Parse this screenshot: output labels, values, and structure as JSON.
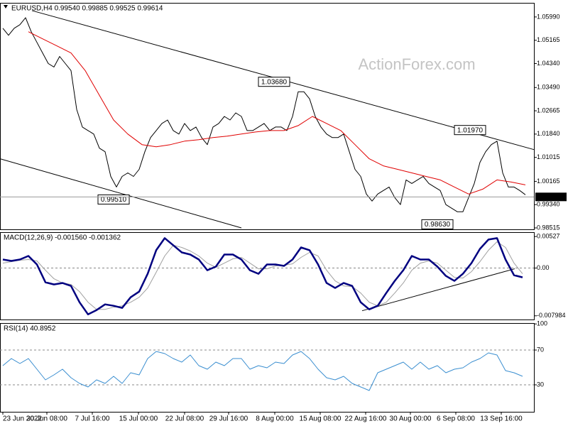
{
  "chart_data": [
    {
      "type": "line",
      "title": "EURUSD,H4  0.99540 0.99885 0.99525 0.99614",
      "watermark": "ActionForex.com",
      "xlim": [
        0,
        376
      ],
      "ylim": [
        0.98465,
        1.0649
      ],
      "yticks": [
        {
          "value": 1.0599,
          "label": "1.05990"
        },
        1.05165,
        {
          "value": 1.0434,
          "label": "1.04340"
        },
        {
          "value": 1.0349,
          "label": "1.03490"
        },
        1.02665,
        {
          "value": 1.0184,
          "label": "1.01840"
        },
        1.01015,
        1.00165,
        {
          "value": 0.9934,
          "label": "0.99340"
        },
        0.98515
      ],
      "series": [
        {
          "color": "#000000",
          "width": 1,
          "x": [
            2,
            6,
            10,
            14,
            18,
            22,
            26,
            30,
            34,
            38,
            42,
            46,
            50,
            54,
            58,
            62,
            66,
            70,
            74,
            78,
            82,
            86,
            90,
            94,
            98,
            102,
            106,
            110,
            114,
            118,
            122,
            126,
            130,
            134,
            138,
            142,
            146,
            150,
            154,
            158,
            162,
            166,
            170,
            174,
            178,
            182,
            186,
            190,
            194,
            198,
            202,
            206,
            210,
            214,
            218,
            222,
            226,
            230,
            234,
            238,
            242,
            246,
            250,
            254,
            258,
            262,
            266,
            270,
            274,
            278,
            282,
            286,
            290,
            294,
            298,
            302,
            306,
            310,
            314,
            318,
            322,
            326,
            330,
            334,
            338,
            342,
            346,
            350,
            354,
            358,
            362,
            366,
            370
          ],
          "values": [
            1.0559,
            1.0534,
            1.0559,
            1.05715,
            1.05965,
            1.05465,
            1.0509,
            1.04715,
            1.0434,
            1.04215,
            1.0459,
            1.0434,
            1.0409,
            1.02715,
            1.0209,
            1.01965,
            1.0184,
            1.0134,
            1.01215,
            1.0034,
            0.99965,
            1.0034,
            1.00465,
            1.0034,
            1.0059,
            1.01215,
            1.01715,
            1.01965,
            1.02215,
            1.0234,
            1.01965,
            1.0184,
            1.02215,
            1.01965,
            1.0209,
            1.01715,
            1.01465,
            1.0209,
            1.02215,
            1.02465,
            1.0234,
            1.0259,
            1.02465,
            1.01965,
            1.01965,
            1.0209,
            1.02215,
            1.01965,
            1.0209,
            1.0209,
            1.01965,
            1.02465,
            1.0334,
            1.0334,
            1.0309,
            1.02465,
            1.0209,
            1.0184,
            1.01715,
            1.01715,
            1.0184,
            1.01215,
            1.0059,
            1.0034,
            0.99715,
            0.99465,
            0.99715,
            0.9984,
            0.99965,
            0.9959,
            0.9934,
            1.00215,
            1.0009,
            1.00215,
            1.0034,
            1.0009,
            0.99965,
            0.9984,
            0.9934,
            0.99215,
            0.9909,
            0.9909,
            0.9959,
            1.0009,
            1.0084,
            1.01215,
            1.01465,
            1.0159,
            1.00465,
            0.99965,
            0.99965,
            0.9984,
            0.9969
          ]
        },
        {
          "color": "#e00000",
          "width": 1,
          "x": [
            20,
            30,
            40,
            50,
            60,
            70,
            80,
            90,
            100,
            110,
            120,
            130,
            140,
            150,
            160,
            170,
            180,
            190,
            200,
            210,
            220,
            230,
            240,
            250,
            260,
            270,
            280,
            290,
            300,
            310,
            320,
            330,
            340,
            350,
            360,
            370
          ],
          "values": [
            1.05465,
            1.05215,
            1.04965,
            1.04715,
            1.0409,
            1.03215,
            1.0234,
            1.0184,
            1.01465,
            1.0139,
            1.01465,
            1.0159,
            1.0164,
            1.01715,
            1.01765,
            1.0184,
            1.01915,
            1.01965,
            1.01965,
            1.0214,
            1.02465,
            1.02215,
            1.01965,
            1.01465,
            1.00965,
            1.00715,
            1.0059,
            1.00465,
            1.0034,
            1.00215,
            0.99965,
            0.99715,
            0.9989,
            1.00215,
            1.0014,
            1.0004
          ]
        }
      ],
      "trendlines": [
        {
          "x": [
            22.5,
            376
          ],
          "values": [
            1.06215,
            1.0129
          ]
        },
        {
          "x": [
            0,
            170
          ],
          "values": [
            1.00965,
            0.98515
          ]
        }
      ],
      "annotations": [
        {
          "label": "1.03680",
          "value": 1.0368,
          "x": 204
        },
        {
          "label": "0.99510",
          "value": 0.9951,
          "x": 91
        },
        {
          "label": "1.01970",
          "value": 1.0197,
          "x": 342
        },
        {
          "label": "0.98630",
          "value": 0.9863,
          "x": 319
        }
      ],
      "last_price": {
        "value": 0.99614,
        "label": "0.99614"
      }
    },
    {
      "type": "line",
      "title": "MACD(12,26,9) -0.001560 -0.001362",
      "xlim": [
        0,
        376
      ],
      "ylim": [
        -0.0086,
        0.006
      ],
      "yticks": [
        0.00527,
        {
          "value": 0,
          "label": "0.00"
        },
        -0.007984
      ],
      "levels": [
        0
      ],
      "series": [
        {
          "color": "#a0a0a0",
          "width": 1,
          "x": [
            2,
            8,
            14,
            20,
            26,
            32,
            38,
            44,
            50,
            56,
            62,
            68,
            74,
            80,
            86,
            92,
            98,
            104,
            110,
            116,
            122,
            128,
            134,
            140,
            146,
            152,
            158,
            164,
            170,
            176,
            182,
            188,
            194,
            200,
            206,
            212,
            218,
            224,
            230,
            236,
            242,
            248,
            254,
            260,
            266,
            272,
            278,
            284,
            290,
            296,
            302,
            308,
            314,
            320,
            326,
            332,
            338,
            344,
            350,
            356,
            362,
            368
          ],
          "values": [
            0.00083,
            0.00107,
            0.00131,
            0.00143,
            0.00119,
            -0.00036,
            -0.00179,
            -0.0025,
            -0.00274,
            -0.00393,
            -0.00571,
            -0.0069,
            -0.0069,
            -0.00655,
            -0.00631,
            -0.00571,
            -0.00488,
            -0.00333,
            -0.00071,
            0.00202,
            0.00381,
            0.00345,
            0.00286,
            0.00202,
            0.00083,
            0.00012,
            0.00083,
            0.00155,
            0.00179,
            0.00083,
            -0.00012,
            -0.00012,
            0.00036,
            0.00048,
            0.00071,
            0.00179,
            0.00262,
            0.00202,
            -0.00036,
            -0.00214,
            -0.00298,
            -0.00309,
            -0.00417,
            -0.00571,
            -0.00631,
            -0.00571,
            -0.00417,
            -0.0025,
            -0.00036,
            0.00083,
            0.00119,
            0.00083,
            -0.00036,
            -0.00155,
            -0.00167,
            -0.0006,
            0.00107,
            0.00298,
            0.0044,
            0.00345,
            0.00083,
            -0.00095
          ]
        },
        {
          "color": "#000080",
          "width": 2.5,
          "x": [
            2,
            8,
            14,
            20,
            26,
            32,
            38,
            44,
            50,
            56,
            62,
            68,
            74,
            80,
            86,
            92,
            98,
            104,
            110,
            116,
            122,
            128,
            134,
            140,
            146,
            152,
            158,
            164,
            170,
            176,
            182,
            188,
            194,
            200,
            206,
            212,
            218,
            224,
            230,
            236,
            242,
            248,
            254,
            260,
            266,
            272,
            278,
            284,
            290,
            296,
            302,
            308,
            314,
            320,
            326,
            332,
            338,
            344,
            350,
            356,
            362,
            368
          ],
          "values": [
            0.00143,
            0.00119,
            0.00143,
            0.00202,
            0.0006,
            -0.00238,
            -0.00274,
            -0.0025,
            -0.00298,
            -0.00571,
            -0.00774,
            -0.00702,
            -0.00607,
            -0.00631,
            -0.00666,
            -0.00488,
            -0.00393,
            -0.00095,
            0.00298,
            0.005,
            0.00381,
            0.00262,
            0.00226,
            0.00143,
            -0.00036,
            0.00024,
            0.00226,
            0.00226,
            0.00143,
            -0.00036,
            -0.00095,
            0.0006,
            0.0006,
            0.00036,
            0.00143,
            0.00345,
            0.00298,
            0.0006,
            -0.0025,
            -0.00333,
            -0.0025,
            -0.00298,
            -0.00571,
            -0.0069,
            -0.00631,
            -0.00417,
            -0.00214,
            -0.00036,
            0.00202,
            0.00143,
            0.00143,
            0.00024,
            -0.00131,
            -0.00214,
            -0.00095,
            0.00083,
            0.00321,
            0.00476,
            0.005,
            0.00143,
            -0.00119,
            -0.00155
          ]
        }
      ],
      "trendlines": [
        {
          "x": [
            255,
            362.5
          ],
          "values": [
            -0.00714,
            -0.00012
          ]
        }
      ]
    },
    {
      "type": "line",
      "title": "RSI(14) 40.8952",
      "xlim": [
        0,
        376
      ],
      "ylim": [
        -1,
        101
      ],
      "yticks": [
        100,
        70,
        30
      ],
      "levels": [
        30,
        70
      ],
      "xticks": [
        {
          "value": 2,
          "label": "23 Jun 2022"
        },
        {
          "value": 33,
          "label": "30 Jun 08:00"
        },
        {
          "value": 65,
          "label": "7 Jul 16:00"
        },
        {
          "value": 97.5,
          "label": "15 Jul 00:00"
        },
        {
          "value": 130,
          "label": "22 Jul 08:00"
        },
        {
          "value": 161,
          "label": "29 Jul 16:00"
        },
        {
          "value": 193.5,
          "label": "8 Aug 00:00"
        },
        {
          "value": 225.5,
          "label": "15 Aug 08:00"
        },
        {
          "value": 257.5,
          "label": "22 Aug 16:00"
        },
        {
          "value": 289,
          "label": "30 Aug 00:00"
        },
        {
          "value": 321,
          "label": "6 Sep 08:00"
        },
        {
          "value": 353,
          "label": "13 Sep 16:00"
        }
      ],
      "series": [
        {
          "color": "#3a8ed0",
          "width": 1,
          "x": [
            2,
            8,
            14,
            20,
            26,
            32,
            38,
            44,
            50,
            56,
            62,
            68,
            74,
            80,
            86,
            92,
            98,
            104,
            110,
            116,
            122,
            128,
            134,
            140,
            146,
            152,
            158,
            164,
            170,
            176,
            182,
            188,
            194,
            200,
            206,
            212,
            218,
            224,
            230,
            236,
            242,
            248,
            254,
            260,
            266,
            272,
            278,
            284,
            290,
            296,
            302,
            308,
            314,
            320,
            326,
            332,
            338,
            344,
            350,
            356,
            362,
            368
          ],
          "values": [
            52.0,
            60.2,
            54.5,
            60.2,
            48.0,
            35.7,
            41.4,
            48.0,
            38.2,
            31.6,
            27.6,
            35.7,
            31.6,
            39.8,
            31.6,
            43.9,
            41.4,
            60.2,
            68.4,
            65.9,
            60.2,
            56.1,
            64.3,
            52.0,
            48.0,
            56.1,
            52.0,
            60.2,
            60.2,
            48.0,
            52.0,
            49.6,
            56.1,
            54.5,
            64.3,
            68.4,
            60.2,
            48.0,
            38.2,
            35.7,
            39.8,
            31.6,
            27.6,
            23.5,
            43.9,
            48.0,
            52.0,
            56.1,
            48.0,
            56.1,
            48.0,
            52.0,
            43.9,
            48.0,
            49.6,
            56.1,
            60.2,
            66.7,
            64.3,
            46.3,
            43.9,
            39.8
          ]
        }
      ]
    }
  ]
}
